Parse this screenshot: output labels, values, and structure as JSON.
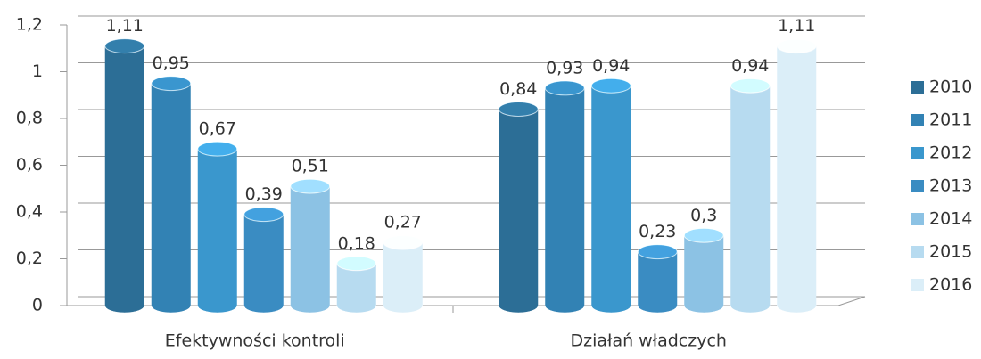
{
  "chart_data": {
    "type": "bar",
    "categories": [
      "Efektywności kontroli",
      "Działań władczych"
    ],
    "series": [
      {
        "name": "2010",
        "color": "#2c6e96",
        "values": [
          1.11,
          0.84
        ],
        "value_labels": [
          "1,11",
          "0,84"
        ]
      },
      {
        "name": "2011",
        "color": "#3282b4",
        "values": [
          0.95,
          0.93
        ],
        "value_labels": [
          "0,95",
          "0,93"
        ]
      },
      {
        "name": "2012",
        "color": "#3a97cd",
        "values": [
          0.67,
          0.94
        ],
        "value_labels": [
          "0,67",
          "0,94"
        ]
      },
      {
        "name": "2013",
        "color": "#3a8cc2",
        "values": [
          0.39,
          0.23
        ],
        "value_labels": [
          "0,39",
          "0,23"
        ]
      },
      {
        "name": "2014",
        "color": "#8cc2e4",
        "values": [
          0.51,
          0.3
        ],
        "value_labels": [
          "0,51",
          "0,3"
        ]
      },
      {
        "name": "2015",
        "color": "#b7dbf0",
        "values": [
          0.18,
          0.94
        ],
        "value_labels": [
          "0,18",
          "0,94"
        ]
      },
      {
        "name": "2016",
        "color": "#dbeef8",
        "values": [
          0.27,
          1.11
        ],
        "value_labels": [
          "0,27",
          "1,11"
        ]
      }
    ],
    "ylim": [
      0,
      1.2
    ],
    "yticks": [
      0,
      {
        "value": 0.2,
        "label": "0,2"
      },
      {
        "value": 0.4,
        "label": "0,4"
      },
      {
        "value": 0.6,
        "label": "0,6"
      },
      {
        "value": 0.8,
        "label": "0,8"
      },
      1,
      {
        "value": 1.2,
        "label": "1,2"
      }
    ],
    "grid": true,
    "legend": "right"
  }
}
